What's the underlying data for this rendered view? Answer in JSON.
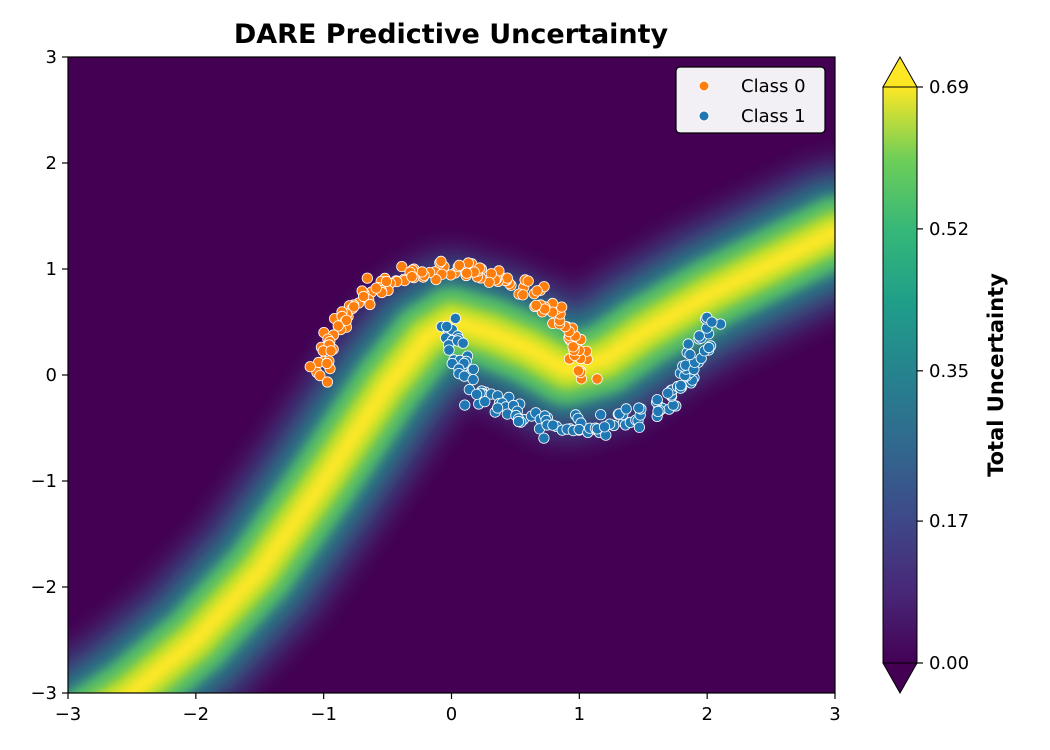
{
  "chart_data": {
    "type": "heatmap",
    "title": "DARE Predictive Uncertainty",
    "xlim": [
      -3,
      3
    ],
    "ylim": [
      -3,
      3
    ],
    "x_ticks": [
      -3,
      -2,
      -1,
      0,
      1,
      2,
      3
    ],
    "y_ticks": [
      -3,
      -2,
      -1,
      0,
      1,
      2,
      3
    ],
    "x_tick_labels": [
      "−3",
      "−2",
      "−1",
      "0",
      "1",
      "2",
      "3"
    ],
    "y_tick_labels": [
      "−3",
      "−2",
      "−1",
      "0",
      "1",
      "2",
      "3"
    ],
    "grid": false,
    "colorbar": {
      "label": "Total Uncertainty",
      "range": [
        0.0,
        0.69
      ],
      "ticks": [
        0.0,
        0.17,
        0.35,
        0.52,
        0.69
      ],
      "tick_labels": [
        "0.00",
        "0.17",
        "0.35",
        "0.52",
        "0.69"
      ],
      "colormap": "viridis",
      "extend": "both"
    },
    "legend": {
      "placement": "top-right",
      "entries": [
        {
          "label": "Class 0",
          "color": "#ff7f0e"
        },
        {
          "label": "Class 1",
          "color": "#1f77b4"
        }
      ]
    },
    "decision_boundary": {
      "x": [
        -3.0,
        -2.5,
        -2.0,
        -1.5,
        -1.0,
        -0.5,
        -0.2,
        0.0,
        0.3,
        0.6,
        0.9,
        1.2,
        1.5,
        2.0,
        2.5,
        3.0
      ],
      "y": [
        -3.4,
        -3.0,
        -2.5,
        -1.85,
        -1.0,
        -0.1,
        0.35,
        0.5,
        0.4,
        0.25,
        0.05,
        0.15,
        0.4,
        0.75,
        1.05,
        1.35
      ]
    },
    "series": [
      {
        "name": "Class 0",
        "color": "#ff7f0e",
        "shape": "arc",
        "center": [
          0.0,
          0.0
        ],
        "radius": 1.0,
        "angle_range_deg": [
          0,
          180
        ],
        "noise": 0.05,
        "count": 150
      },
      {
        "name": "Class 1",
        "color": "#1f77b4",
        "shape": "arc",
        "center": [
          1.0,
          0.5
        ],
        "radius": 1.0,
        "angle_range_deg": [
          180,
          360
        ],
        "noise": 0.05,
        "count": 150
      }
    ]
  }
}
